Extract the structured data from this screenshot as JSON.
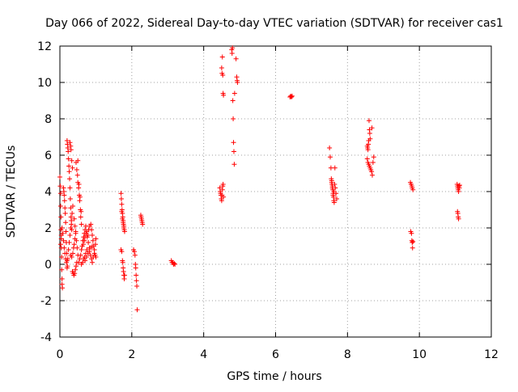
{
  "chart_data": {
    "type": "scatter",
    "title": "Day 066 of 2022, Sidereal Day-to-day VTEC variation (SDTVAR) for receiver cas1",
    "xlabel": "GPS time / hours",
    "ylabel": "SDTVAR / TECUs",
    "xlim": [
      0,
      12
    ],
    "ylim": [
      -4,
      12
    ],
    "xticks": [
      "0",
      "2",
      "4",
      "6",
      "8",
      "10",
      "12"
    ],
    "yticks": [
      "-4",
      "-2",
      "0",
      "2",
      "4",
      "6",
      "8",
      "10",
      "12"
    ],
    "grid": true,
    "marker": "+",
    "color": "#ff0000",
    "series": [
      {
        "name": "cas1",
        "points": [
          [
            0.0,
            4.8
          ],
          [
            0.01,
            4.3
          ],
          [
            0.02,
            3.9
          ],
          [
            0.02,
            3.2
          ],
          [
            0.03,
            2.6
          ],
          [
            0.03,
            1.9
          ],
          [
            0.04,
            1.4
          ],
          [
            0.04,
            0.9
          ],
          [
            0.05,
            0.4
          ],
          [
            0.05,
            -0.3
          ],
          [
            0.06,
            -0.8
          ],
          [
            0.06,
            -1.1
          ],
          [
            0.07,
            -1.3
          ],
          [
            0.02,
            1.1
          ],
          [
            0.04,
            1.6
          ],
          [
            0.06,
            2.0
          ],
          [
            0.08,
            1.7
          ],
          [
            0.1,
            4.2
          ],
          [
            0.11,
            4.0
          ],
          [
            0.12,
            3.8
          ],
          [
            0.13,
            3.5
          ],
          [
            0.14,
            3.1
          ],
          [
            0.15,
            2.8
          ],
          [
            0.16,
            2.3
          ],
          [
            0.17,
            1.8
          ],
          [
            0.18,
            1.2
          ],
          [
            0.19,
            0.6
          ],
          [
            0.2,
            0.2
          ],
          [
            0.21,
            -0.1
          ],
          [
            0.1,
            1.3
          ],
          [
            0.12,
            0.9
          ],
          [
            0.14,
            0.6
          ],
          [
            0.16,
            0.3
          ],
          [
            0.18,
            0.1
          ],
          [
            0.2,
            -0.2
          ],
          [
            0.2,
            6.8
          ],
          [
            0.21,
            6.6
          ],
          [
            0.22,
            6.4
          ],
          [
            0.23,
            6.2
          ],
          [
            0.24,
            5.8
          ],
          [
            0.25,
            5.4
          ],
          [
            0.26,
            5.1
          ],
          [
            0.27,
            4.7
          ],
          [
            0.28,
            4.2
          ],
          [
            0.29,
            3.6
          ],
          [
            0.3,
            3.1
          ],
          [
            0.31,
            2.6
          ],
          [
            0.32,
            2.2
          ],
          [
            0.33,
            1.9
          ],
          [
            0.28,
            6.7
          ],
          [
            0.3,
            6.5
          ],
          [
            0.31,
            6.3
          ],
          [
            0.33,
            5.7
          ],
          [
            0.35,
            5.3
          ],
          [
            0.22,
            0.3
          ],
          [
            0.24,
            0.8
          ],
          [
            0.26,
            1.2
          ],
          [
            0.28,
            1.6
          ],
          [
            0.3,
            2.0
          ],
          [
            0.32,
            2.4
          ],
          [
            0.34,
            2.8
          ],
          [
            0.36,
            3.2
          ],
          [
            0.3,
            0.5
          ],
          [
            0.33,
            0.4
          ],
          [
            0.36,
            0.6
          ],
          [
            0.38,
            0.9
          ],
          [
            0.4,
            1.1
          ],
          [
            0.42,
            1.4
          ],
          [
            0.44,
            1.8
          ],
          [
            0.35,
            -0.4
          ],
          [
            0.37,
            -0.5
          ],
          [
            0.39,
            -0.6
          ],
          [
            0.41,
            -0.5
          ],
          [
            0.43,
            -0.3
          ],
          [
            0.45,
            -0.1
          ],
          [
            0.47,
            0.1
          ],
          [
            0.4,
            2.5
          ],
          [
            0.42,
            2.1
          ],
          [
            0.44,
            1.7
          ],
          [
            0.46,
            1.3
          ],
          [
            0.48,
            0.9
          ],
          [
            0.5,
            0.5
          ],
          [
            0.52,
            0.1
          ],
          [
            0.45,
            5.6
          ],
          [
            0.47,
            5.2
          ],
          [
            0.49,
            4.9
          ],
          [
            0.5,
            4.5
          ],
          [
            0.52,
            4.2
          ],
          [
            0.54,
            3.8
          ],
          [
            0.55,
            3.5
          ],
          [
            0.57,
            3.0
          ],
          [
            0.58,
            2.6
          ],
          [
            0.6,
            2.2
          ],
          [
            0.5,
            5.7
          ],
          [
            0.53,
            4.4
          ],
          [
            0.56,
            3.7
          ],
          [
            0.59,
            2.9
          ],
          [
            0.55,
            0.3
          ],
          [
            0.58,
            0.5
          ],
          [
            0.6,
            0.8
          ],
          [
            0.62,
            1.0
          ],
          [
            0.64,
            1.3
          ],
          [
            0.66,
            1.5
          ],
          [
            0.68,
            1.7
          ],
          [
            0.7,
            1.9
          ],
          [
            0.72,
            2.1
          ],
          [
            0.6,
            0.0
          ],
          [
            0.63,
            0.1
          ],
          [
            0.66,
            0.3
          ],
          [
            0.69,
            0.4
          ],
          [
            0.72,
            0.6
          ],
          [
            0.75,
            0.8
          ],
          [
            0.65,
            1.1
          ],
          [
            0.68,
            1.3
          ],
          [
            0.7,
            1.5
          ],
          [
            0.73,
            1.7
          ],
          [
            0.76,
            1.5
          ],
          [
            0.79,
            1.2
          ],
          [
            0.82,
            0.9
          ],
          [
            0.7,
            0.2
          ],
          [
            0.74,
            0.4
          ],
          [
            0.78,
            0.6
          ],
          [
            0.82,
            0.7
          ],
          [
            0.86,
            0.9
          ],
          [
            0.9,
            1.0
          ],
          [
            0.75,
            1.8
          ],
          [
            0.78,
            1.6
          ],
          [
            0.8,
            1.9
          ],
          [
            0.83,
            2.1
          ],
          [
            0.86,
            2.2
          ],
          [
            0.88,
            1.9
          ],
          [
            0.9,
            1.6
          ],
          [
            0.92,
            1.3
          ],
          [
            0.94,
            1.0
          ],
          [
            0.96,
            0.8
          ],
          [
            0.98,
            0.5
          ],
          [
            1.0,
            0.4
          ],
          [
            0.85,
            0.5
          ],
          [
            0.88,
            0.3
          ],
          [
            0.9,
            0.1
          ],
          [
            0.93,
            0.4
          ],
          [
            0.96,
            0.6
          ],
          [
            0.99,
            1.1
          ],
          [
            1.0,
            1.4
          ],
          [
            1.7,
            3.9
          ],
          [
            1.71,
            3.6
          ],
          [
            1.72,
            3.3
          ],
          [
            1.73,
            3.0
          ],
          [
            1.74,
            2.8
          ],
          [
            1.75,
            2.6
          ],
          [
            1.76,
            2.4
          ],
          [
            1.77,
            2.2
          ],
          [
            1.78,
            2.0
          ],
          [
            1.79,
            1.9
          ],
          [
            1.8,
            1.8
          ],
          [
            1.72,
            2.9
          ],
          [
            1.74,
            2.5
          ],
          [
            1.76,
            2.3
          ],
          [
            1.78,
            2.1
          ],
          [
            1.7,
            0.8
          ],
          [
            1.72,
            0.7
          ],
          [
            1.74,
            0.2
          ],
          [
            1.75,
            0.1
          ],
          [
            1.76,
            -0.2
          ],
          [
            1.77,
            -0.4
          ],
          [
            1.78,
            -0.6
          ],
          [
            1.79,
            -0.8
          ],
          [
            1.8,
            -0.6
          ],
          [
            2.05,
            0.8
          ],
          [
            2.07,
            0.7
          ],
          [
            2.09,
            0.5
          ],
          [
            2.1,
            0.0
          ],
          [
            2.11,
            -0.2
          ],
          [
            2.12,
            -0.6
          ],
          [
            2.13,
            -0.9
          ],
          [
            2.14,
            -1.2
          ],
          [
            2.15,
            -2.5
          ],
          [
            2.25,
            2.7
          ],
          [
            2.26,
            2.6
          ],
          [
            2.27,
            2.5
          ],
          [
            2.28,
            2.4
          ],
          [
            2.29,
            2.3
          ],
          [
            2.3,
            2.2
          ],
          [
            3.1,
            0.2
          ],
          [
            3.12,
            0.1
          ],
          [
            3.14,
            0.1
          ],
          [
            3.16,
            0.0
          ],
          [
            3.18,
            0.05
          ],
          [
            3.2,
            0.0
          ],
          [
            4.45,
            4.2
          ],
          [
            4.46,
            4.0
          ],
          [
            4.47,
            3.9
          ],
          [
            4.48,
            3.8
          ],
          [
            4.49,
            3.6
          ],
          [
            4.5,
            3.5
          ],
          [
            4.51,
            3.8
          ],
          [
            4.52,
            4.1
          ],
          [
            4.53,
            4.3
          ],
          [
            4.54,
            4.4
          ],
          [
            4.55,
            3.7
          ],
          [
            4.5,
            10.8
          ],
          [
            4.51,
            10.5
          ],
          [
            4.52,
            11.4
          ],
          [
            4.53,
            10.4
          ],
          [
            4.54,
            9.4
          ],
          [
            4.55,
            9.3
          ],
          [
            4.78,
            11.8
          ],
          [
            4.79,
            11.6
          ],
          [
            4.8,
            11.9
          ],
          [
            4.81,
            9.0
          ],
          [
            4.82,
            8.0
          ],
          [
            4.83,
            6.7
          ],
          [
            4.84,
            6.2
          ],
          [
            4.85,
            5.5
          ],
          [
            4.86,
            9.4
          ],
          [
            4.9,
            11.3
          ],
          [
            4.92,
            10.3
          ],
          [
            4.93,
            10.1
          ],
          [
            4.94,
            10.0
          ],
          [
            6.4,
            9.2
          ],
          [
            6.42,
            9.25
          ],
          [
            6.44,
            9.2
          ],
          [
            6.46,
            9.25
          ],
          [
            7.5,
            6.4
          ],
          [
            7.52,
            5.9
          ],
          [
            7.54,
            5.3
          ],
          [
            7.55,
            4.7
          ],
          [
            7.56,
            4.5
          ],
          [
            7.57,
            4.4
          ],
          [
            7.58,
            4.3
          ],
          [
            7.59,
            4.1
          ],
          [
            7.6,
            3.9
          ],
          [
            7.61,
            3.7
          ],
          [
            7.62,
            3.5
          ],
          [
            7.63,
            3.4
          ],
          [
            7.56,
            4.6
          ],
          [
            7.58,
            4.2
          ],
          [
            7.6,
            3.8
          ],
          [
            7.62,
            4.0
          ],
          [
            7.64,
            4.4
          ],
          [
            7.66,
            4.2
          ],
          [
            7.68,
            3.9
          ],
          [
            7.7,
            3.6
          ],
          [
            7.65,
            5.3
          ],
          [
            8.55,
            6.5
          ],
          [
            8.56,
            6.4
          ],
          [
            8.57,
            6.3
          ],
          [
            8.58,
            6.6
          ],
          [
            8.59,
            6.8
          ],
          [
            8.6,
            7.9
          ],
          [
            8.61,
            7.4
          ],
          [
            8.62,
            7.2
          ],
          [
            8.63,
            6.9
          ],
          [
            8.55,
            5.8
          ],
          [
            8.57,
            5.6
          ],
          [
            8.59,
            5.5
          ],
          [
            8.61,
            5.4
          ],
          [
            8.63,
            5.3
          ],
          [
            8.65,
            5.2
          ],
          [
            8.67,
            5.1
          ],
          [
            8.69,
            4.9
          ],
          [
            8.71,
            5.6
          ],
          [
            8.73,
            5.9
          ],
          [
            8.68,
            7.5
          ],
          [
            9.75,
            4.5
          ],
          [
            9.77,
            4.4
          ],
          [
            9.79,
            4.3
          ],
          [
            9.8,
            4.2
          ],
          [
            9.82,
            4.1
          ],
          [
            9.76,
            1.8
          ],
          [
            9.78,
            1.7
          ],
          [
            9.79,
            1.3
          ],
          [
            9.8,
            1.2
          ],
          [
            9.82,
            1.25
          ],
          [
            9.81,
            0.9
          ],
          [
            11.05,
            4.4
          ],
          [
            11.06,
            4.3
          ],
          [
            11.07,
            4.2
          ],
          [
            11.08,
            4.1
          ],
          [
            11.09,
            4.0
          ],
          [
            11.1,
            4.3
          ],
          [
            11.11,
            4.2
          ],
          [
            11.12,
            4.35
          ],
          [
            11.06,
            2.9
          ],
          [
            11.07,
            2.8
          ],
          [
            11.08,
            2.6
          ],
          [
            11.09,
            2.5
          ]
        ]
      }
    ]
  }
}
